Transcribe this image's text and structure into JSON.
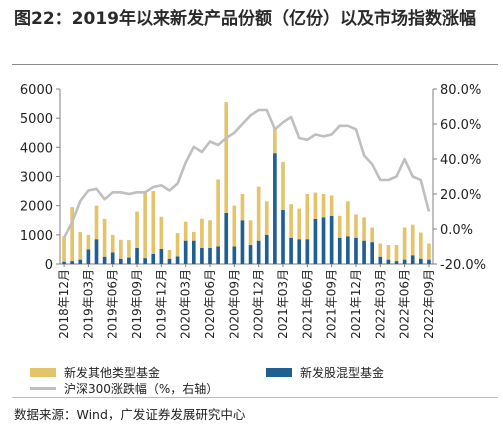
{
  "figure": {
    "title": "图22：2019年以来新发产品份额（亿份）以及市场指数涨幅",
    "source": "数据来源：Wind，广发证券发展研究中心"
  },
  "legend": {
    "other": "新发其他类型基金",
    "equity": "新发股混型基金",
    "index": "沪深300涨跌幅（%，右轴）"
  },
  "colors": {
    "other": "#e3c46b",
    "equity": "#1f5f92",
    "index": "#bfbfbf"
  },
  "chart_data": {
    "type": "bar",
    "stacked": true,
    "categories": [
      "2018年12月",
      "2019年01月",
      "2019年02月",
      "2019年03月",
      "2019年04月",
      "2019年05月",
      "2019年06月",
      "2019年07月",
      "2019年08月",
      "2019年09月",
      "2019年10月",
      "2019年11月",
      "2019年12月",
      "2020年01月",
      "2020年02月",
      "2020年03月",
      "2020年04月",
      "2020年05月",
      "2020年06月",
      "2020年07月",
      "2020年08月",
      "2020年09月",
      "2020年10月",
      "2020年11月",
      "2020年12月",
      "2021年01月",
      "2021年02月",
      "2021年03月",
      "2021年04月",
      "2021年05月",
      "2021年06月",
      "2021年07月",
      "2021年08月",
      "2021年09月",
      "2021年10月",
      "2021年11月",
      "2021年12月",
      "2022年01月",
      "2022年02月",
      "2022年03月",
      "2022年04月",
      "2022年05月",
      "2022年06月",
      "2022年07月",
      "2022年08月",
      "2022年09月"
    ],
    "xtick_labels": [
      "2018年12月",
      "2019年03月",
      "2019年06月",
      "2019年09月",
      "2019年12月",
      "2020年03月",
      "2020年06月",
      "2020年09月",
      "2020年12月",
      "2021年03月",
      "2021年06月",
      "2021年09月",
      "2021年12月",
      "2022年03月",
      "2022年06月",
      "2022年09月"
    ],
    "series": [
      {
        "name": "新发股混型基金",
        "axis": "left",
        "values": [
          80,
          100,
          150,
          500,
          850,
          250,
          400,
          180,
          220,
          550,
          200,
          350,
          520,
          180,
          260,
          800,
          800,
          550,
          550,
          600,
          1750,
          600,
          1500,
          650,
          800,
          1000,
          3800,
          1850,
          900,
          850,
          850,
          1550,
          1600,
          1650,
          900,
          950,
          900,
          800,
          750,
          250,
          150,
          100,
          150,
          300,
          180,
          150
        ]
      },
      {
        "name": "新发其他类型基金",
        "axis": "left",
        "values": [
          870,
          1850,
          950,
          500,
          1150,
          1300,
          600,
          650,
          600,
          1250,
          2300,
          2150,
          1100,
          300,
          800,
          650,
          300,
          1000,
          950,
          2300,
          3800,
          1400,
          900,
          850,
          1850,
          1150,
          850,
          1650,
          1150,
          1050,
          1550,
          900,
          800,
          700,
          750,
          1200,
          800,
          800,
          500,
          450,
          500,
          550,
          1100,
          1050,
          900,
          550
        ]
      },
      {
        "name": "沪深300涨跌幅（%，右轴）",
        "axis": "right",
        "values": [
          -5,
          4,
          16,
          22,
          23,
          17,
          21,
          21,
          20,
          21,
          21,
          24,
          25,
          22,
          26,
          38,
          47,
          44,
          50,
          48,
          52,
          55,
          60,
          65,
          68,
          68,
          57,
          61,
          64,
          52,
          51,
          54,
          53,
          54,
          59,
          59,
          57,
          42,
          37,
          28,
          28,
          30,
          40,
          30,
          28,
          10
        ]
      }
    ],
    "ylim_left": [
      0,
      6000
    ],
    "yticks_left": [
      "0",
      "1000",
      "2000",
      "3000",
      "4000",
      "5000",
      "6000"
    ],
    "ylim_right": [
      -20,
      80
    ],
    "yticks_right": [
      "-20.0%",
      "0.0%",
      "20.0%",
      "40.0%",
      "60.0%",
      "80.0%"
    ]
  }
}
